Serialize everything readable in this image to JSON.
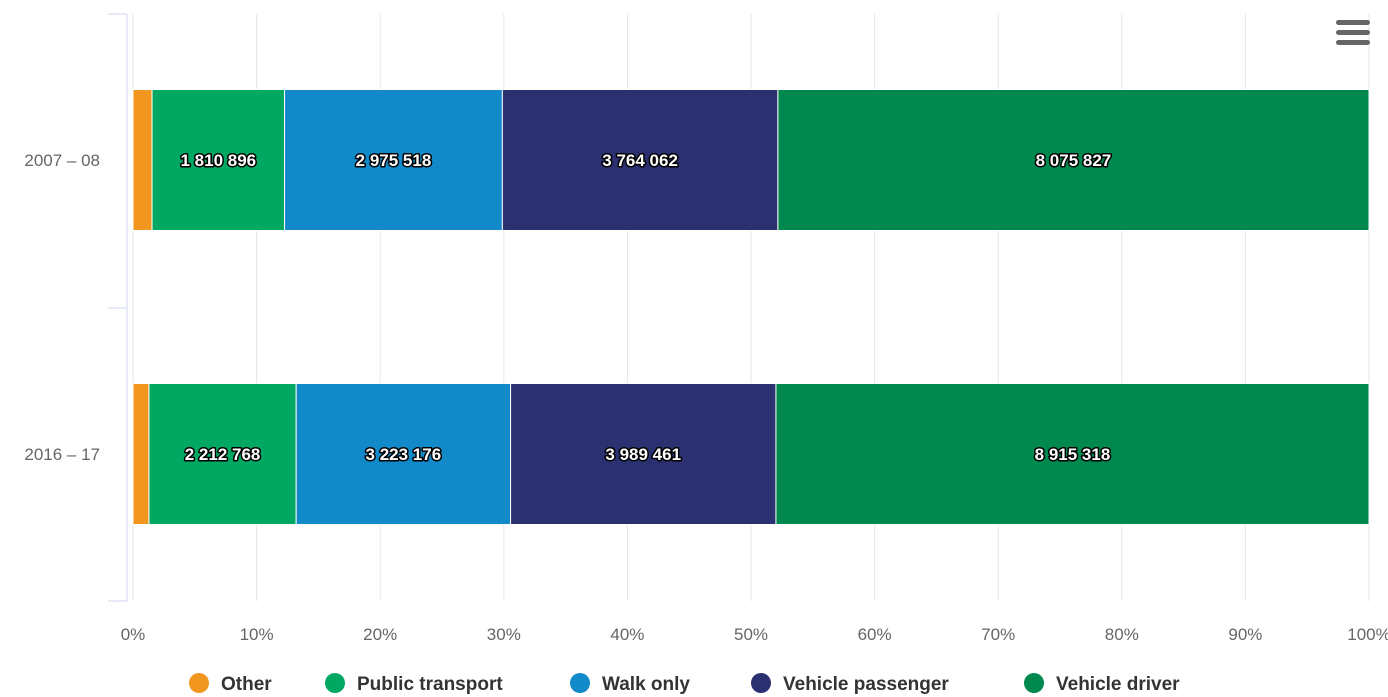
{
  "chart_data": {
    "type": "bar",
    "orientation": "horizontal",
    "stacking": "percent",
    "categories": [
      "2007 – 08",
      "2016 – 17"
    ],
    "series": [
      {
        "name": "Other",
        "color": "#f1961f",
        "values": [
          260000,
          240000
        ]
      },
      {
        "name": "Public transport",
        "color": "#00a862",
        "values": [
          1810896,
          2212768
        ]
      },
      {
        "name": "Walk only",
        "color": "#1289c9",
        "values": [
          2975518,
          3223176
        ]
      },
      {
        "name": "Vehicle passenger",
        "color": "#2b3070",
        "values": [
          3764062,
          3989461
        ]
      },
      {
        "name": "Vehicle driver",
        "color": "#00894e",
        "values": [
          8075827,
          8915318
        ]
      }
    ],
    "data_labels": [
      [
        "",
        "1 810 896",
        "2 975 518",
        "3 764 062",
        "8 075 827"
      ],
      [
        "",
        "2 212 768",
        "3 223 176",
        "3 989 461",
        "8 915 318"
      ]
    ],
    "x_ticks": [
      "0%",
      "10%",
      "20%",
      "30%",
      "40%",
      "50%",
      "60%",
      "70%",
      "80%",
      "90%",
      "100%"
    ],
    "xlim": [
      0,
      100
    ],
    "grid": true,
    "legend_position": "bottom-center"
  },
  "icons": {
    "menu": "hamburger-menu-icon"
  }
}
